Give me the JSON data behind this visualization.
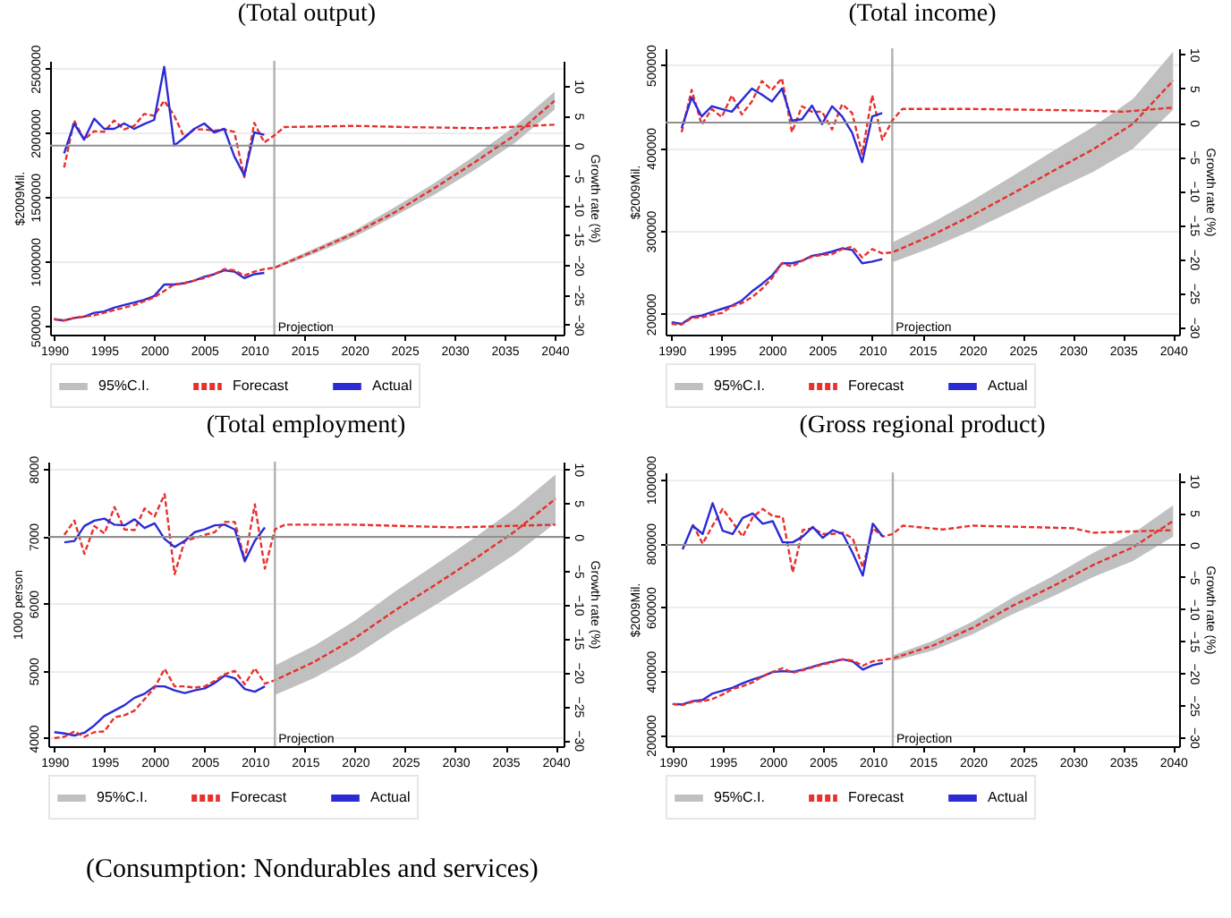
{
  "chart_data": [
    {
      "type": "line",
      "title": "(Total output)",
      "ylabel": "$2009Mil.",
      "y2label": "Growth rate (%)",
      "xlim": [
        1989.6,
        2040.9
      ],
      "xticks": [
        1990,
        1995,
        2000,
        2005,
        2010,
        2015,
        2020,
        2025,
        2030,
        2035,
        2040
      ],
      "ylim": [
        430000,
        2560000
      ],
      "yticks": [
        500000,
        1000000,
        1500000,
        2000000,
        2500000
      ],
      "y2lim": [
        -31.7,
        14.2
      ],
      "y2ticks": [
        -30,
        -25,
        -20,
        -15,
        -10,
        -5,
        0,
        5,
        10
      ],
      "grid": "y",
      "legend": "bottom",
      "annotations": [
        "95%C.I."
      ],
      "ref_lines": [
        {
          "axis": "x",
          "value": 2012,
          "label": "Projection",
          "color": "#b0b0b0"
        },
        {
          "axis": "y2",
          "value": 0,
          "color": "#909090"
        }
      ],
      "series": [
        {
          "name": "Forecast",
          "color": "#e8302c",
          "line_style": "dashed",
          "x": [
            1990,
            1991,
            1992,
            1993,
            1994,
            1995,
            1996,
            1997,
            1998,
            1999,
            2000,
            2001,
            2002,
            2003,
            2004,
            2005,
            2006,
            2007,
            2008,
            2009,
            2010,
            2011,
            2012,
            2016,
            2020,
            2024,
            2028,
            2032,
            2036,
            2040
          ],
          "values": [
            550000,
            540000,
            560000,
            570000,
            580000,
            600000,
            620000,
            640000,
            660000,
            690000,
            720000,
            770000,
            820000,
            830000,
            850000,
            870000,
            900000,
            940000,
            930000,
            890000,
            920000,
            940000,
            950000,
            1080000,
            1220000,
            1380000,
            1570000,
            1770000,
            1980000,
            2250000
          ],
          "lower": [
            null,
            null,
            null,
            null,
            null,
            null,
            null,
            null,
            null,
            null,
            null,
            null,
            null,
            null,
            null,
            null,
            null,
            null,
            null,
            null,
            null,
            null,
            940000,
            1060000,
            1190000,
            1350000,
            1520000,
            1710000,
            1920000,
            2180000
          ],
          "upper": [
            null,
            null,
            null,
            null,
            null,
            null,
            null,
            null,
            null,
            null,
            null,
            null,
            null,
            null,
            null,
            null,
            null,
            null,
            null,
            null,
            null,
            null,
            960000,
            1100000,
            1240000,
            1420000,
            1610000,
            1820000,
            2050000,
            2320000
          ]
        },
        {
          "name": "Actual",
          "color": "#2b2bd6",
          "x": [
            1990,
            1991,
            1992,
            1993,
            1994,
            1995,
            1996,
            1997,
            1998,
            1999,
            2000,
            2001,
            2002,
            2003,
            2004,
            2005,
            2006,
            2007,
            2008,
            2009,
            2010,
            2011
          ],
          "values": [
            550000,
            540000,
            560000,
            570000,
            600000,
            610000,
            640000,
            660000,
            680000,
            700000,
            730000,
            820000,
            820000,
            830000,
            850000,
            880000,
            900000,
            930000,
            920000,
            870000,
            900000,
            910000
          ]
        },
        {
          "axis": "y2",
          "color": "#e8302c",
          "line_style": "dashed",
          "x": [
            1991,
            1992,
            1993,
            1994,
            1995,
            1996,
            1997,
            1998,
            1999,
            2000,
            2001,
            2002,
            2003,
            2004,
            2005,
            2006,
            2007,
            2008,
            2009,
            2010,
            2011,
            2012,
            2013,
            2020,
            2025,
            2033,
            2040
          ],
          "values": [
            -3.7,
            4.2,
            1.0,
            2.4,
            2.3,
            4.2,
            2.7,
            3.3,
            5.3,
            5.0,
            7.5,
            5.0,
            1.4,
            2.7,
            2.7,
            2.5,
            2.7,
            2.3,
            -5.3,
            3.8,
            0.5,
            1.7,
            3.1,
            3.3,
            3.1,
            2.9,
            3.5
          ]
        },
        {
          "axis": "y2",
          "color": "#2b2bd6",
          "x": [
            1991,
            1992,
            1993,
            1994,
            1995,
            1996,
            1997,
            1998,
            1999,
            2000,
            2001,
            2002,
            2003,
            2004,
            2005,
            2006,
            2007,
            2008,
            2009,
            2010,
            2011
          ],
          "values": [
            -1.3,
            3.7,
            1.0,
            4.5,
            2.8,
            2.8,
            3.7,
            2.8,
            3.6,
            4.3,
            13.2,
            0.0,
            1.3,
            2.8,
            3.7,
            2.2,
            2.8,
            -1.8,
            -5.0,
            2.2,
            1.8
          ]
        }
      ]
    },
    {
      "type": "line",
      "title": "(Total income)",
      "ylabel": "$2009Mil.",
      "y2label": "Growth rate (%)",
      "xlim": [
        1989.4,
        2040.6
      ],
      "xticks": [
        1990,
        1995,
        2000,
        2005,
        2010,
        2015,
        2020,
        2025,
        2030,
        2035,
        2040
      ],
      "ylim": [
        175000,
        520000
      ],
      "yticks": [
        200000,
        300000,
        400000,
        500000
      ],
      "y2lim": [
        -31.1,
        10.9
      ],
      "y2ticks": [
        -30,
        -25,
        -20,
        -15,
        -10,
        -5,
        0,
        5,
        10
      ],
      "grid": "y",
      "legend": "bottom",
      "annotations": [
        "95%C.I."
      ],
      "ref_lines": [
        {
          "axis": "x",
          "value": 2012,
          "label": "Projection",
          "color": "#b0b0b0"
        },
        {
          "axis": "y2",
          "value": 0,
          "color": "#909090"
        }
      ],
      "series": [
        {
          "name": "Forecast",
          "color": "#e8302c",
          "line_style": "dashed",
          "x": [
            1990,
            1991,
            1992,
            1993,
            1994,
            1995,
            1996,
            1997,
            1998,
            1999,
            2000,
            2001,
            2002,
            2003,
            2004,
            2005,
            2006,
            2007,
            2008,
            2009,
            2010,
            2011,
            2012,
            2016,
            2020,
            2024,
            2028,
            2032,
            2036,
            2040
          ],
          "values": [
            188000,
            187000,
            195000,
            196000,
            199000,
            201000,
            209000,
            213000,
            220000,
            230000,
            243000,
            261000,
            257000,
            264000,
            269000,
            271000,
            272000,
            278000,
            281000,
            268000,
            278000,
            273000,
            274000,
            295000,
            319000,
            345000,
            372000,
            398000,
            429000,
            481000
          ],
          "lower": [
            null,
            null,
            null,
            null,
            null,
            null,
            null,
            null,
            null,
            null,
            null,
            null,
            null,
            null,
            null,
            null,
            null,
            null,
            null,
            null,
            null,
            null,
            262000,
            280000,
            301000,
            324000,
            348000,
            371000,
            399000,
            446000
          ],
          "upper": [
            null,
            null,
            null,
            null,
            null,
            null,
            null,
            null,
            null,
            null,
            null,
            null,
            null,
            null,
            null,
            null,
            null,
            null,
            null,
            null,
            null,
            null,
            286000,
            310000,
            337000,
            366000,
            396000,
            425000,
            459000,
            516000
          ]
        },
        {
          "name": "Actual",
          "color": "#2b2bd6",
          "x": [
            1990,
            1991,
            1992,
            1993,
            1994,
            1995,
            1996,
            1997,
            1998,
            1999,
            2000,
            2001,
            2002,
            2003,
            2004,
            2005,
            2006,
            2007,
            2008,
            2009,
            2010,
            2011
          ],
          "values": [
            190000,
            188000,
            196000,
            198000,
            202000,
            206000,
            210000,
            216000,
            227000,
            236000,
            246000,
            261000,
            261000,
            264000,
            270000,
            272000,
            275000,
            279000,
            277000,
            261000,
            263000,
            266000
          ]
        },
        {
          "axis": "y2",
          "color": "#e8302c",
          "line_style": "dashed",
          "x": [
            1991,
            1992,
            1993,
            1994,
            1995,
            1996,
            1997,
            1998,
            1999,
            2000,
            2001,
            2002,
            2003,
            2004,
            2005,
            2006,
            2007,
            2008,
            2009,
            2010,
            2011,
            2012,
            2013,
            2020,
            2030,
            2035,
            2040
          ],
          "values": [
            -1.4,
            4.8,
            -0.3,
            2.0,
            0.8,
            4.0,
            1.2,
            3.1,
            6.1,
            4.8,
            6.5,
            -1.4,
            2.4,
            1.6,
            1.6,
            -1.0,
            2.7,
            1.4,
            -4.6,
            4.0,
            -2.5,
            0.3,
            2.0,
            2.0,
            1.8,
            1.6,
            2.2
          ]
        },
        {
          "axis": "y2",
          "color": "#2b2bd6",
          "x": [
            1991,
            1992,
            1993,
            1994,
            1995,
            1996,
            1997,
            1998,
            1999,
            2000,
            2001,
            2002,
            2003,
            2004,
            2005,
            2006,
            2007,
            2008,
            2009,
            2010,
            2011
          ],
          "values": [
            -0.8,
            3.7,
            0.9,
            2.4,
            2.0,
            1.6,
            3.3,
            5.0,
            4.1,
            3.1,
            5.0,
            0.3,
            0.5,
            2.5,
            -0.2,
            2.4,
            0.9,
            -1.5,
            -5.8,
            0.9,
            1.4
          ]
        }
      ]
    },
    {
      "type": "line",
      "title": "(Total employment)",
      "ylabel": "1000 person",
      "y2label": "Growth rate (%)",
      "xlim": [
        1989.4,
        2040.8
      ],
      "xticks": [
        1990,
        1995,
        2000,
        2005,
        2010,
        2015,
        2020,
        2025,
        2030,
        2035,
        2040
      ],
      "ylim": [
        3880,
        8110
      ],
      "yticks": [
        4000,
        5000,
        6000,
        7000,
        8000
      ],
      "y2lim": [
        -30.9,
        11.1
      ],
      "y2ticks": [
        -30,
        -25,
        -20,
        -15,
        -10,
        -5,
        0,
        5,
        10
      ],
      "grid": "y",
      "legend": "bottom",
      "annotations": [
        "95%C.I."
      ],
      "ref_lines": [
        {
          "axis": "x",
          "value": 2012,
          "label": "Projection",
          "color": "#b0b0b0"
        },
        {
          "axis": "y2",
          "value": 0,
          "color": "#909090"
        }
      ],
      "series": [
        {
          "name": "Forecast",
          "color": "#e8302c",
          "line_style": "dashed",
          "x": [
            1990,
            1991,
            1992,
            1993,
            1994,
            1995,
            1996,
            1997,
            1998,
            1999,
            2000,
            2001,
            2002,
            2003,
            2004,
            2005,
            2006,
            2007,
            2008,
            2009,
            2010,
            2011,
            2012,
            2016,
            2020,
            2024,
            2028,
            2032,
            2036,
            2040
          ],
          "values": [
            4000,
            4020,
            4100,
            4020,
            4090,
            4100,
            4310,
            4340,
            4410,
            4580,
            4750,
            5030,
            4770,
            4770,
            4750,
            4770,
            4850,
            4950,
            5000,
            4800,
            5040,
            4810,
            4860,
            5140,
            5490,
            5900,
            6280,
            6670,
            7080,
            7560
          ],
          "lower": [
            null,
            null,
            null,
            null,
            null,
            null,
            null,
            null,
            null,
            null,
            null,
            null,
            null,
            null,
            null,
            null,
            null,
            null,
            null,
            null,
            null,
            null,
            4640,
            4900,
            5230,
            5620,
            5980,
            6350,
            6740,
            7200
          ],
          "upper": [
            null,
            null,
            null,
            null,
            null,
            null,
            null,
            null,
            null,
            null,
            null,
            null,
            null,
            null,
            null,
            null,
            null,
            null,
            null,
            null,
            null,
            null,
            5080,
            5380,
            5750,
            6180,
            6580,
            6990,
            7420,
            7920
          ]
        },
        {
          "name": "Actual",
          "color": "#2b2bd6",
          "x": [
            1990,
            1991,
            1992,
            1993,
            1994,
            1995,
            1996,
            1997,
            1998,
            1999,
            2000,
            2001,
            2002,
            2003,
            2004,
            2005,
            2006,
            2007,
            2008,
            2009,
            2010,
            2011
          ],
          "values": [
            4090,
            4070,
            4040,
            4080,
            4190,
            4330,
            4410,
            4490,
            4600,
            4660,
            4770,
            4770,
            4710,
            4670,
            4710,
            4740,
            4820,
            4930,
            4890,
            4730,
            4690,
            4770
          ]
        },
        {
          "axis": "y2",
          "color": "#e8302c",
          "line_style": "dashed",
          "x": [
            1991,
            1992,
            1993,
            1994,
            1995,
            1996,
            1997,
            1998,
            1999,
            2000,
            2001,
            2002,
            2003,
            2004,
            2005,
            2006,
            2007,
            2008,
            2009,
            2010,
            2011,
            2012,
            2013,
            2020,
            2030,
            2040
          ],
          "values": [
            0.3,
            2.4,
            -2.5,
            1.6,
            0.5,
            4.4,
            1.1,
            1.0,
            4.2,
            3.0,
            6.3,
            -5.5,
            -0.6,
            -0.2,
            0.3,
            0.7,
            2.2,
            2.2,
            -3.4,
            4.8,
            -4.7,
            1.1,
            1.8,
            1.8,
            1.4,
            1.8
          ]
        },
        {
          "axis": "y2",
          "color": "#2b2bd6",
          "x": [
            1991,
            1992,
            1993,
            1994,
            1995,
            1996,
            1997,
            1998,
            1999,
            2000,
            2001,
            2002,
            2003,
            2004,
            2005,
            2006,
            2007,
            2008,
            2009,
            2010,
            2011
          ],
          "values": [
            -0.8,
            -0.6,
            1.6,
            2.4,
            2.7,
            1.8,
            1.7,
            2.6,
            1.3,
            2.0,
            -0.3,
            -1.5,
            -0.6,
            0.7,
            1.1,
            1.7,
            1.8,
            1.1,
            -3.6,
            -0.6,
            1.4
          ]
        }
      ]
    },
    {
      "type": "line",
      "title": "(Gross regional product)",
      "ylabel": "$2009Mil.",
      "y2label": "Growth rate (%)",
      "xlim": [
        1989.3,
        2040.6
      ],
      "xticks": [
        1990,
        1995,
        2000,
        2005,
        2010,
        2015,
        2020,
        2025,
        2030,
        2035,
        2040
      ],
      "ylim": [
        165000,
        1022000
      ],
      "yticks": [
        200000,
        400000,
        600000,
        800000,
        1000000
      ],
      "y2lim": [
        -31.4,
        11.3
      ],
      "y2ticks": [
        -30,
        -25,
        -20,
        -15,
        -10,
        -5,
        0,
        5,
        10
      ],
      "grid": "y",
      "legend": "bottom",
      "annotations": [
        "95%C.I."
      ],
      "ref_lines": [
        {
          "axis": "x",
          "value": 2012,
          "label": "Projection",
          "color": "#b0b0b0"
        },
        {
          "axis": "y2",
          "value": 0,
          "color": "#909090"
        }
      ],
      "series": [
        {
          "name": "Forecast",
          "color": "#e8302c",
          "line_style": "dashed",
          "x": [
            1990,
            1991,
            1992,
            1993,
            1994,
            1995,
            1996,
            1997,
            1998,
            1999,
            2000,
            2001,
            2002,
            2003,
            2004,
            2005,
            2006,
            2007,
            2008,
            2009,
            2010,
            2011,
            2012,
            2016,
            2020,
            2024,
            2028,
            2032,
            2036,
            2040
          ],
          "values": [
            297000,
            294000,
            304000,
            306000,
            313000,
            327000,
            344000,
            353000,
            365000,
            384000,
            398000,
            409000,
            395000,
            403000,
            412000,
            421000,
            428000,
            437000,
            433000,
            417000,
            431000,
            435000,
            440000,
            480000,
            536000,
            605000,
            666000,
            732000,
            788000,
            870000
          ],
          "lower": [
            null,
            null,
            null,
            null,
            null,
            null,
            null,
            null,
            null,
            null,
            null,
            null,
            null,
            null,
            null,
            null,
            null,
            null,
            null,
            null,
            null,
            null,
            431000,
            465000,
            516000,
            579000,
            634000,
            694000,
            745000,
            821000
          ],
          "upper": [
            null,
            null,
            null,
            null,
            null,
            null,
            null,
            null,
            null,
            null,
            null,
            null,
            null,
            null,
            null,
            null,
            null,
            null,
            null,
            null,
            null,
            null,
            449000,
            495000,
            556000,
            631000,
            698000,
            770000,
            831000,
            919000
          ]
        },
        {
          "name": "Actual",
          "color": "#2b2bd6",
          "x": [
            1990,
            1991,
            1992,
            1993,
            1994,
            1995,
            1996,
            1997,
            1998,
            1999,
            2000,
            2001,
            2002,
            2003,
            2004,
            2005,
            2006,
            2007,
            2008,
            2009,
            2010,
            2011
          ],
          "values": [
            297000,
            296000,
            306000,
            310000,
            330000,
            339000,
            348000,
            362000,
            374000,
            384000,
            397000,
            400000,
            398000,
            405000,
            414000,
            423000,
            430000,
            437000,
            430000,
            405000,
            419000,
            426000
          ]
        },
        {
          "axis": "y2",
          "color": "#e8302c",
          "line_style": "dashed",
          "x": [
            1992,
            1993,
            1994,
            1995,
            1996,
            1997,
            1998,
            1999,
            2000,
            2001,
            2002,
            2003,
            2004,
            2005,
            2006,
            2007,
            2008,
            2009,
            2010,
            2011,
            2012,
            2013,
            2017,
            2020,
            2025,
            2030,
            2032,
            2040
          ],
          "values": [
            3.2,
            0.2,
            3.0,
            5.6,
            3.5,
            1.3,
            4.3,
            5.6,
            4.5,
            4.3,
            -4.3,
            2.3,
            2.6,
            1.7,
            1.7,
            1.9,
            1.0,
            -3.5,
            2.6,
            1.3,
            1.7,
            3.0,
            2.4,
            3.0,
            2.8,
            2.6,
            1.9,
            2.3
          ]
        },
        {
          "axis": "y2",
          "color": "#2b2bd6",
          "x": [
            1991,
            1992,
            1993,
            1994,
            1995,
            1996,
            1997,
            1998,
            1999,
            2000,
            2001,
            2002,
            2003,
            2004,
            2005,
            2006,
            2007,
            2008,
            2009,
            2010,
            2011
          ],
          "values": [
            -0.7,
            3.0,
            1.7,
            6.5,
            2.2,
            1.7,
            4.2,
            4.9,
            3.3,
            3.7,
            0.4,
            0.4,
            1.3,
            2.8,
            1.1,
            2.3,
            1.7,
            -1.3,
            -4.8,
            3.3,
            1.3
          ]
        }
      ]
    },
    {
      "type": "other",
      "title": "(Consumption: Nondurables and services)"
    }
  ]
}
